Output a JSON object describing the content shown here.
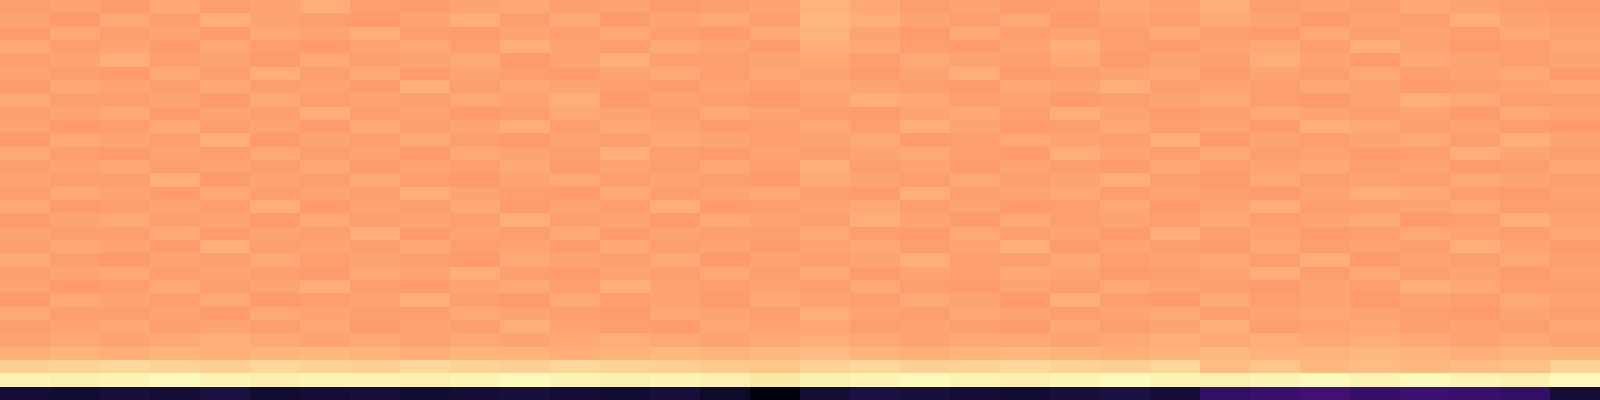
{
  "chart_data": {
    "type": "heatmap",
    "color": "magma",
    "tick_labels": false,
    "color_range": [
      0,
      100
    ],
    "cells": [
      [
        80,
        81,
        79,
        82,
        80,
        81,
        83,
        80,
        79,
        81,
        82,
        80,
        81,
        79,
        80,
        81,
        84,
        82,
        80,
        81,
        79,
        80,
        82,
        81,
        83,
        80,
        81,
        80,
        82,
        81,
        80,
        79
      ],
      [
        81,
        79,
        82,
        80,
        83,
        81,
        80,
        79,
        81,
        83,
        80,
        82,
        79,
        81,
        82,
        80,
        85,
        83,
        81,
        80,
        82,
        79,
        81,
        80,
        82,
        81,
        79,
        81,
        80,
        83,
        81,
        80
      ],
      [
        79,
        82,
        80,
        81,
        79,
        82,
        81,
        83,
        80,
        79,
        81,
        80,
        82,
        80,
        79,
        82,
        84,
        81,
        79,
        82,
        80,
        81,
        80,
        82,
        80,
        79,
        82,
        80,
        81,
        80,
        82,
        81
      ],
      [
        82,
        80,
        81,
        79,
        82,
        80,
        79,
        81,
        82,
        80,
        83,
        81,
        80,
        82,
        81,
        79,
        83,
        82,
        80,
        79,
        81,
        83,
        80,
        79,
        81,
        82,
        80,
        83,
        81,
        79,
        80,
        82
      ],
      [
        80,
        81,
        83,
        80,
        81,
        79,
        82,
        80,
        81,
        82,
        79,
        81,
        83,
        80,
        80,
        81,
        82,
        80,
        82,
        81,
        80,
        82,
        79,
        81,
        80,
        83,
        81,
        79,
        82,
        81,
        80,
        81
      ],
      [
        81,
        80,
        79,
        82,
        80,
        83,
        80,
        82,
        79,
        81,
        80,
        79,
        81,
        82,
        80,
        82,
        81,
        79,
        81,
        83,
        79,
        80,
        81,
        82,
        79,
        81,
        80,
        82,
        80,
        81,
        82,
        79
      ],
      [
        79,
        82,
        81,
        80,
        82,
        80,
        81,
        79,
        83,
        80,
        82,
        81,
        80,
        79,
        81,
        80,
        82,
        81,
        80,
        79,
        82,
        81,
        83,
        80,
        81,
        80,
        82,
        81,
        79,
        80,
        81,
        82
      ],
      [
        82,
        80,
        80,
        81,
        79,
        82,
        80,
        81,
        80,
        82,
        81,
        83,
        79,
        81,
        80,
        79,
        81,
        83,
        82,
        80,
        81,
        79,
        80,
        81,
        82,
        80,
        79,
        81,
        83,
        82,
        80,
        80
      ],
      [
        80,
        81,
        82,
        79,
        81,
        80,
        83,
        80,
        81,
        79,
        80,
        82,
        81,
        80,
        82,
        81,
        80,
        79,
        81,
        82,
        80,
        83,
        81,
        79,
        80,
        82,
        81,
        80,
        81,
        79,
        82,
        81
      ],
      [
        81,
        79,
        80,
        82,
        80,
        81,
        79,
        82,
        80,
        81,
        83,
        80,
        82,
        81,
        79,
        80,
        82,
        80,
        83,
        81,
        79,
        80,
        82,
        80,
        81,
        79,
        83,
        82,
        80,
        81,
        80,
        79
      ],
      [
        79,
        82,
        81,
        80,
        83,
        79,
        81,
        80,
        82,
        80,
        79,
        81,
        80,
        82,
        81,
        80,
        81,
        82,
        79,
        80,
        82,
        81,
        80,
        83,
        79,
        81,
        80,
        81,
        82,
        80,
        83,
        81
      ],
      [
        82,
        80,
        79,
        81,
        80,
        82,
        80,
        81,
        79,
        82,
        81,
        80,
        83,
        80,
        79,
        81,
        80,
        81,
        82,
        80,
        79,
        83,
        81,
        80,
        82,
        80,
        81,
        79,
        80,
        83,
        81,
        80
      ],
      [
        80,
        81,
        82,
        80,
        81,
        80,
        82,
        79,
        81,
        80,
        82,
        79,
        81,
        80,
        82,
        80,
        83,
        80,
        81,
        79,
        81,
        80,
        79,
        82,
        80,
        81,
        82,
        80,
        81,
        79,
        80,
        82
      ],
      [
        81,
        80,
        80,
        83,
        79,
        81,
        80,
        82,
        80,
        79,
        81,
        82,
        80,
        81,
        80,
        79,
        82,
        81,
        80,
        82,
        80,
        81,
        83,
        80,
        79,
        82,
        80,
        81,
        80,
        82,
        81,
        80
      ],
      [
        80,
        82,
        81,
        79,
        82,
        80,
        81,
        80,
        83,
        81,
        80,
        79,
        82,
        80,
        81,
        82,
        80,
        79,
        83,
        80,
        81,
        82,
        80,
        81,
        80,
        79,
        81,
        83,
        82,
        80,
        79,
        81
      ],
      [
        82,
        79,
        80,
        81,
        80,
        83,
        79,
        81,
        80,
        82,
        79,
        81,
        80,
        83,
        79,
        80,
        81,
        82,
        80,
        81,
        79,
        80,
        82,
        79,
        81,
        83,
        80,
        80,
        81,
        82,
        80,
        80
      ],
      [
        79,
        81,
        82,
        80,
        81,
        79,
        82,
        80,
        81,
        80,
        83,
        80,
        81,
        79,
        82,
        81,
        80,
        83,
        81,
        79,
        82,
        80,
        81,
        80,
        82,
        80,
        81,
        82,
        79,
        80,
        83,
        81
      ],
      [
        81,
        80,
        80,
        82,
        79,
        81,
        80,
        83,
        79,
        81,
        80,
        82,
        79,
        81,
        80,
        80,
        82,
        80,
        79,
        82,
        80,
        81,
        79,
        83,
        80,
        81,
        79,
        80,
        82,
        81,
        80,
        82
      ],
      [
        80,
        82,
        81,
        79,
        83,
        80,
        81,
        80,
        82,
        80,
        81,
        79,
        82,
        80,
        81,
        79,
        81,
        82,
        80,
        81,
        83,
        79,
        81,
        80,
        79,
        82,
        80,
        81,
        80,
        83,
        81,
        79
      ],
      [
        82,
        80,
        79,
        81,
        80,
        82,
        80,
        81,
        80,
        79,
        82,
        81,
        80,
        82,
        79,
        81,
        80,
        81,
        83,
        80,
        80,
        82,
        80,
        81,
        82,
        80,
        83,
        79,
        81,
        80,
        82,
        80
      ],
      [
        80,
        81,
        82,
        80,
        81,
        80,
        79,
        82,
        81,
        83,
        80,
        79,
        81,
        80,
        82,
        80,
        82,
        79,
        81,
        80,
        82,
        81,
        79,
        80,
        81,
        83,
        80,
        82,
        80,
        81,
        79,
        81
      ],
      [
        81,
        79,
        80,
        82,
        80,
        81,
        83,
        80,
        79,
        81,
        82,
        80,
        83,
        81,
        80,
        81,
        80,
        82,
        80,
        79,
        81,
        80,
        82,
        81,
        80,
        79,
        81,
        80,
        83,
        82,
        80,
        80
      ],
      [
        79,
        82,
        81,
        80,
        82,
        79,
        80,
        81,
        83,
        80,
        79,
        82,
        80,
        81,
        79,
        82,
        81,
        80,
        82,
        81,
        79,
        83,
        80,
        79,
        82,
        80,
        81,
        79,
        81,
        80,
        82,
        81
      ],
      [
        82,
        80,
        80,
        81,
        79,
        82,
        81,
        80,
        80,
        82,
        81,
        80,
        79,
        82,
        81,
        80,
        83,
        81,
        80,
        82,
        81,
        80,
        81,
        82,
        80,
        81,
        82,
        81,
        80,
        79,
        81,
        80
      ],
      [
        80,
        81,
        82,
        80,
        81,
        80,
        82,
        79,
        81,
        80,
        83,
        81,
        80,
        79,
        82,
        81,
        82,
        80,
        81,
        80,
        79,
        82,
        80,
        81,
        83,
        80,
        81,
        82,
        80,
        81,
        80,
        82
      ],
      [
        81,
        82,
        81,
        82,
        83,
        82,
        81,
        82,
        81,
        82,
        81,
        82,
        83,
        82,
        81,
        82,
        83,
        82,
        81,
        82,
        82,
        81,
        82,
        83,
        82,
        83,
        82,
        83,
        82,
        81,
        82,
        81
      ],
      [
        83,
        84,
        83,
        84,
        83,
        84,
        85,
        84,
        83,
        84,
        84,
        83,
        84,
        85,
        84,
        85,
        86,
        84,
        83,
        84,
        85,
        84,
        83,
        84,
        85,
        84,
        84,
        85,
        84,
        83,
        84,
        84
      ],
      [
        90,
        91,
        92,
        91,
        90,
        92,
        91,
        90,
        92,
        91,
        90,
        92,
        91,
        90,
        89,
        88,
        91,
        92,
        90,
        91,
        92,
        91,
        90,
        92,
        86,
        88,
        85,
        86,
        85,
        86,
        87,
        91
      ],
      [
        98,
        97,
        98,
        99,
        98,
        97,
        98,
        98,
        97,
        98,
        99,
        98,
        97,
        98,
        97,
        95,
        97,
        98,
        99,
        98,
        97,
        98,
        99,
        98,
        97,
        98,
        99,
        98,
        99,
        98,
        97,
        99
      ],
      [
        10,
        9,
        11,
        10,
        12,
        9,
        10,
        11,
        9,
        10,
        11,
        10,
        9,
        11,
        8,
        2,
        10,
        12,
        11,
        10,
        9,
        11,
        12,
        10,
        18,
        20,
        22,
        19,
        21,
        20,
        18,
        10
      ]
    ]
  }
}
